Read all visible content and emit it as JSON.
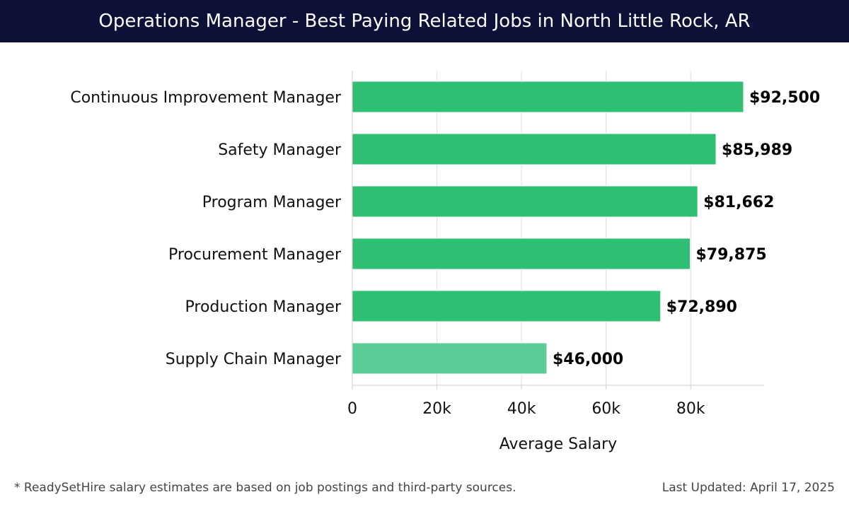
{
  "header": {
    "title": "Operations Manager - Best Paying Related Jobs in North Little Rock, AR"
  },
  "footer": {
    "note": "* ReadySetHire salary estimates are based on job postings and third-party sources.",
    "updated": "Last Updated: April 17, 2025"
  },
  "colors": {
    "title_bar": "#0d1137",
    "bar_primary": "#2ebf73",
    "bar_light": "#5ccd97",
    "grid": "#dddddd"
  },
  "chart_data": {
    "type": "bar",
    "orientation": "horizontal",
    "categories": [
      "Continuous Improvement Manager",
      "Safety Manager",
      "Program Manager",
      "Procurement Manager",
      "Production Manager",
      "Supply Chain Manager"
    ],
    "values": [
      92500,
      85989,
      81662,
      79875,
      72890,
      46000
    ],
    "value_labels": [
      "$92,500",
      "$85,989",
      "$81,662",
      "$79,875",
      "$72,890",
      "$46,000"
    ],
    "xlabel": "Average Salary",
    "xlim": [
      0,
      97500
    ],
    "xticks": [
      0,
      20000,
      40000,
      60000,
      80000
    ],
    "xtick_labels": [
      "0",
      "20k",
      "40k",
      "60k",
      "80k"
    ],
    "grid": true
  }
}
